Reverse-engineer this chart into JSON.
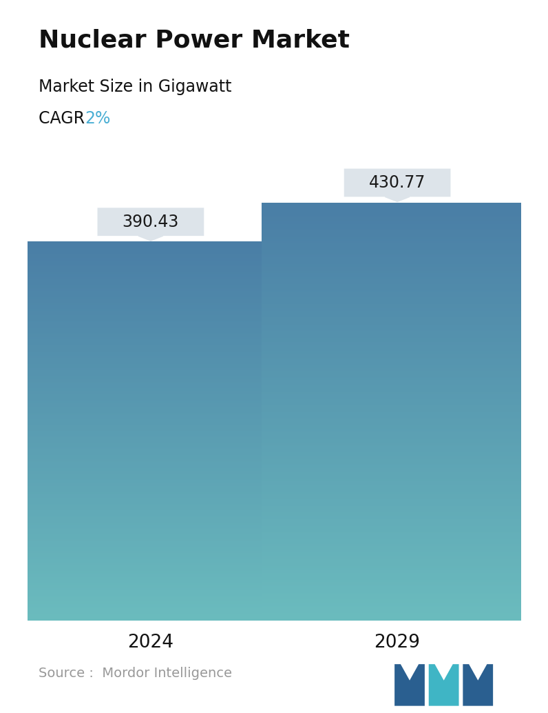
{
  "title": "Nuclear Power Market",
  "subtitle": "Market Size in Gigawatt",
  "cagr_label": "CAGR ",
  "cagr_value": "2%",
  "cagr_color": "#4bafd4",
  "categories": [
    "2024",
    "2029"
  ],
  "values": [
    390.43,
    430.77
  ],
  "bar_top_color": "#4a7ea6",
  "bar_bottom_color": "#6bbcbe",
  "dashed_line_color": "#7aafc8",
  "dashed_line_value": 390.43,
  "tooltip_bg": "#dde4ea",
  "tooltip_text_color": "#1a1a1a",
  "source_text": "Source :  Mordor Intelligence",
  "source_color": "#999999",
  "background_color": "#ffffff",
  "title_fontsize": 26,
  "subtitle_fontsize": 17,
  "cagr_fontsize": 17,
  "tick_fontsize": 19,
  "tooltip_fontsize": 17,
  "source_fontsize": 14,
  "ylim": [
    0,
    500
  ],
  "bar_width": 0.55,
  "x_positions": [
    0.25,
    0.75
  ]
}
